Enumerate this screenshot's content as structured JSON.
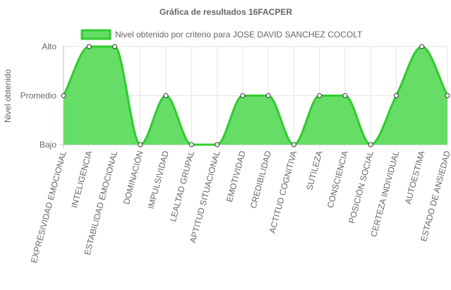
{
  "chart_data": {
    "type": "area",
    "title": "Gráfica de resultados 16FACPER",
    "ylabel": "Nivel obtenido",
    "y_levels": [
      "Bajo",
      "Promedio",
      "Alto"
    ],
    "ylim": [
      0,
      2
    ],
    "categories": [
      "EXPRESIVIDAD EMOCIONAL",
      "INTELIGENCIA",
      "ESTABILIDAD EMOCIONAL",
      "DOMINACIÓN",
      "IMPULSIVIDAD",
      "LEALTAD GRUPAL",
      "APTITUD SITUACIONAL",
      "EMOTIVIDAD",
      "CREDIBILIDAD",
      "ACTITUD COGNITIVA",
      "SUTILEZA",
      "CONSCIENCIA",
      "POSICIÓN SOCIAL",
      "CERTEZA INDIVIDUAL",
      "AUTOESTIMA",
      "ESTADO DE ANSIEDAD"
    ],
    "series": [
      {
        "name": "Nivel obtenido por criterio para JOSE DAVID SANCHEZ COCOLT",
        "values": [
          1,
          2,
          2,
          0,
          1,
          0,
          0,
          1,
          1,
          0,
          1,
          1,
          0,
          1,
          2,
          1
        ],
        "stroke": "#2ecc2e",
        "fill": "#66dd66"
      }
    ],
    "grid": true,
    "legend": "top"
  }
}
